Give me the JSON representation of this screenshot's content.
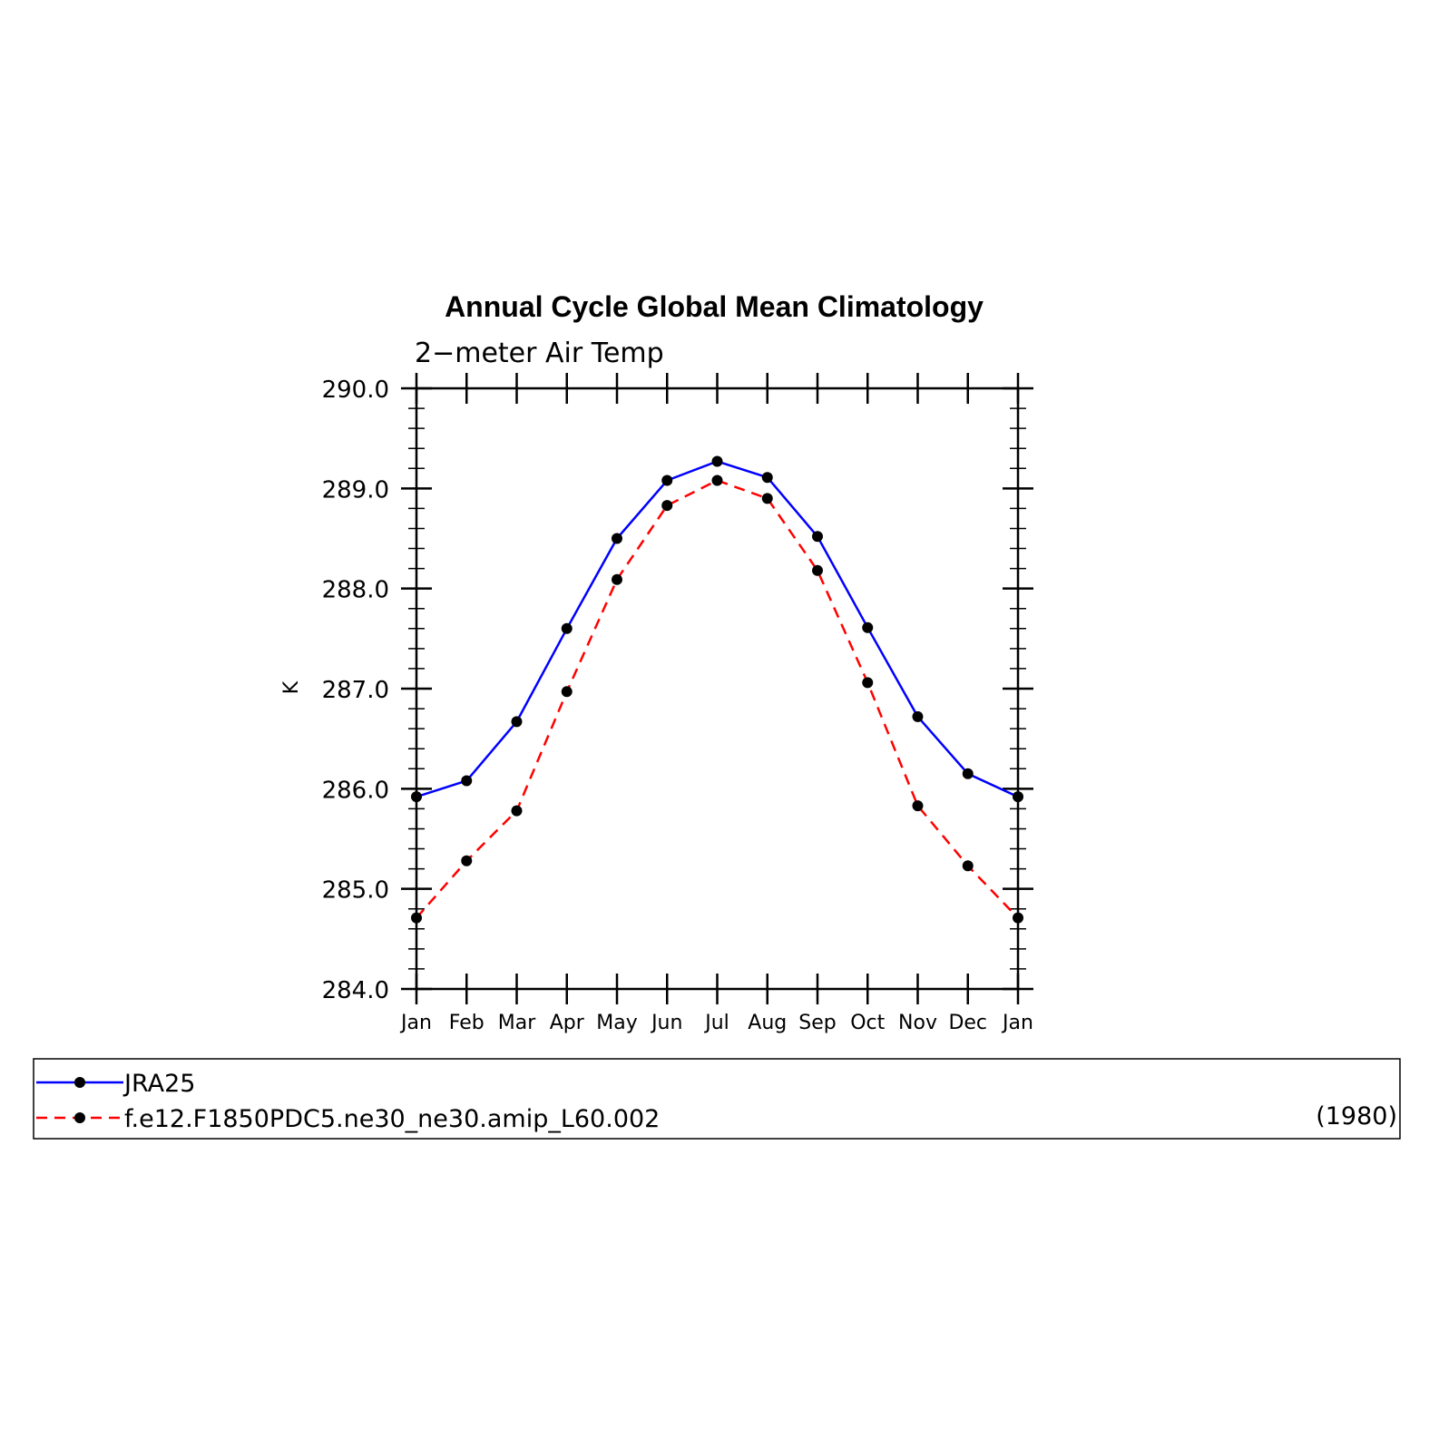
{
  "chart_data": {
    "type": "line",
    "title": "Annual Cycle Global Mean Climatology",
    "subtitle": "2−meter Air Temp",
    "xlabel": "",
    "ylabel": "K",
    "categories": [
      "Jan",
      "Feb",
      "Mar",
      "Apr",
      "May",
      "Jun",
      "Jul",
      "Aug",
      "Sep",
      "Oct",
      "Nov",
      "Dec",
      "Jan"
    ],
    "ylim": [
      284.0,
      290.0
    ],
    "y_ticks": [
      "284.0",
      "285.0",
      "286.0",
      "287.0",
      "288.0",
      "289.0",
      "290.0"
    ],
    "grid": false,
    "legend_position": "bottom",
    "series": [
      {
        "name": "JRA25",
        "color": "#0000ff",
        "line_style": "solid",
        "marker": "filled-circle",
        "values": [
          285.92,
          286.08,
          286.67,
          287.6,
          288.5,
          289.08,
          289.27,
          289.11,
          288.52,
          287.61,
          286.72,
          286.15,
          285.92
        ]
      },
      {
        "name": "f.e12.F1850PDC5.ne30_ne30.amip_L60.002",
        "color": "#ff0000",
        "line_style": "dashed",
        "marker": "filled-circle",
        "values": [
          284.71,
          285.28,
          285.78,
          286.97,
          288.09,
          288.83,
          289.08,
          288.9,
          288.18,
          287.06,
          285.83,
          285.23,
          284.71
        ]
      }
    ],
    "legend_note": "(1980)"
  }
}
